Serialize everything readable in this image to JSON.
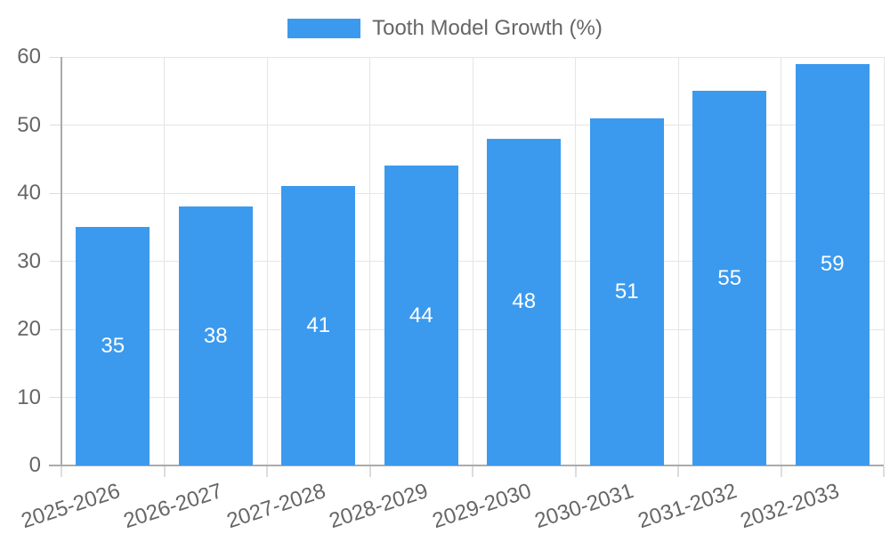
{
  "chart_data": {
    "type": "bar",
    "title": "Tooth Model Growth (%)",
    "categories": [
      "2025-2026",
      "2026-2027",
      "2027-2028",
      "2028-2029",
      "2029-2030",
      "2030-2031",
      "2031-2032",
      "2032-2033"
    ],
    "series": [
      {
        "name": "Tooth Model Growth (%)",
        "values": [
          35,
          38,
          41,
          44,
          48,
          51,
          55,
          59
        ]
      }
    ],
    "value_labels": [
      "35",
      "38",
      "41",
      "44",
      "48",
      "51",
      "55",
      "59"
    ],
    "xlabel": "",
    "ylabel": "",
    "ylim": [
      0,
      60
    ],
    "yticks": [
      0,
      10,
      20,
      30,
      40,
      50,
      60
    ],
    "grid": true,
    "legend_position": "top",
    "colors": {
      "bar": "#3b9aee",
      "value_label": "#ffffff",
      "axis_text": "#666666",
      "gridline": "#e5e5e5",
      "axis_border": "#ababab"
    }
  }
}
